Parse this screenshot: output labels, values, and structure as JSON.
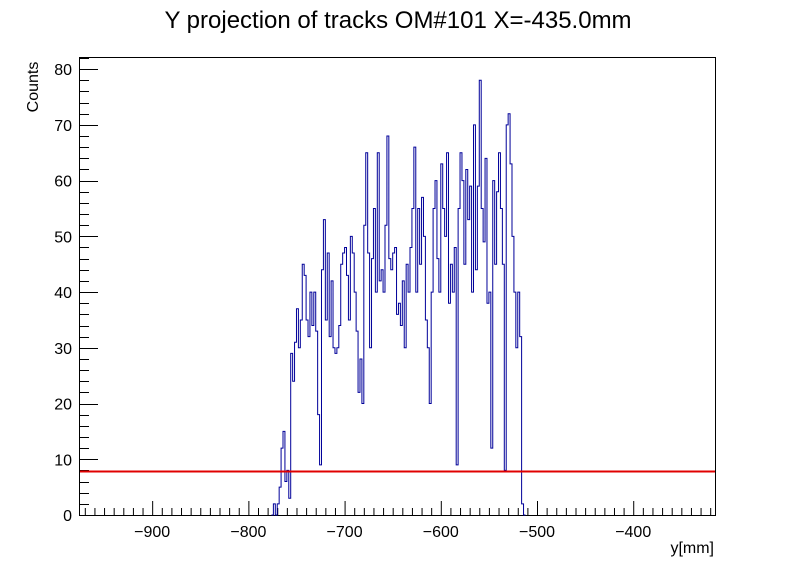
{
  "chart_data": {
    "type": "histogram",
    "title": "Y projection of tracks OM#101 X=-435.0mm",
    "xlabel": "y[mm]",
    "ylabel": "Counts",
    "xlim": [
      -975,
      -315
    ],
    "ylim": [
      0,
      82
    ],
    "x_ticks": [
      -900,
      -800,
      -700,
      -600,
      -500,
      -400
    ],
    "x_tick_labels": [
      "−900",
      "−800",
      "−700",
      "−600",
      "−500",
      "−400"
    ],
    "y_ticks": [
      0,
      10,
      20,
      30,
      40,
      50,
      60,
      70,
      80
    ],
    "y_tick_labels": [
      "0",
      "10",
      "20",
      "30",
      "40",
      "50",
      "60",
      "70",
      "80"
    ],
    "bin_width": 1.5,
    "series": [
      {
        "color": "#000099",
        "points": [
          [
            -775,
            0
          ],
          [
            -773,
            2
          ],
          [
            -771,
            0
          ],
          [
            -769,
            2
          ],
          [
            -767,
            5
          ],
          [
            -765,
            12
          ],
          [
            -763,
            15
          ],
          [
            -761,
            6
          ],
          [
            -759,
            8
          ],
          [
            -757,
            3
          ],
          [
            -755,
            29
          ],
          [
            -753,
            24
          ],
          [
            -751,
            31
          ],
          [
            -749,
            37
          ],
          [
            -747,
            30
          ],
          [
            -745,
            35
          ],
          [
            -743,
            45
          ],
          [
            -741,
            43
          ],
          [
            -739,
            35
          ],
          [
            -737,
            32
          ],
          [
            -735,
            40
          ],
          [
            -733,
            34
          ],
          [
            -731,
            40
          ],
          [
            -729,
            33
          ],
          [
            -727,
            18
          ],
          [
            -725,
            9
          ],
          [
            -723,
            44
          ],
          [
            -721,
            53
          ],
          [
            -719,
            35
          ],
          [
            -717,
            47
          ],
          [
            -715,
            32
          ],
          [
            -713,
            42
          ],
          [
            -711,
            30
          ],
          [
            -709,
            29
          ],
          [
            -707,
            30
          ],
          [
            -705,
            34
          ],
          [
            -703,
            45
          ],
          [
            -701,
            47
          ],
          [
            -699,
            48
          ],
          [
            -697,
            43
          ],
          [
            -695,
            35
          ],
          [
            -693,
            50
          ],
          [
            -691,
            47
          ],
          [
            -689,
            40
          ],
          [
            -687,
            33
          ],
          [
            -685,
            22
          ],
          [
            -683,
            28
          ],
          [
            -681,
            20
          ],
          [
            -679,
            52
          ],
          [
            -677,
            65
          ],
          [
            -675,
            47
          ],
          [
            -673,
            30
          ],
          [
            -671,
            46
          ],
          [
            -669,
            55
          ],
          [
            -667,
            40
          ],
          [
            -665,
            65
          ],
          [
            -663,
            42
          ],
          [
            -661,
            44
          ],
          [
            -659,
            40
          ],
          [
            -657,
            52
          ],
          [
            -655,
            68
          ],
          [
            -653,
            46
          ],
          [
            -651,
            44
          ],
          [
            -649,
            47
          ],
          [
            -647,
            48
          ],
          [
            -645,
            36
          ],
          [
            -643,
            38
          ],
          [
            -641,
            34
          ],
          [
            -639,
            42
          ],
          [
            -637,
            30
          ],
          [
            -635,
            45
          ],
          [
            -633,
            40
          ],
          [
            -631,
            48
          ],
          [
            -629,
            55
          ],
          [
            -627,
            66
          ],
          [
            -625,
            40
          ],
          [
            -623,
            55
          ],
          [
            -621,
            45
          ],
          [
            -619,
            57
          ],
          [
            -617,
            50
          ],
          [
            -615,
            35
          ],
          [
            -613,
            30
          ],
          [
            -611,
            20
          ],
          [
            -609,
            40
          ],
          [
            -607,
            55
          ],
          [
            -605,
            60
          ],
          [
            -603,
            46
          ],
          [
            -601,
            40
          ],
          [
            -599,
            63
          ],
          [
            -597,
            55
          ],
          [
            -595,
            50
          ],
          [
            -593,
            65
          ],
          [
            -591,
            38
          ],
          [
            -589,
            45
          ],
          [
            -587,
            40
          ],
          [
            -585,
            48
          ],
          [
            -583,
            9
          ],
          [
            -581,
            55
          ],
          [
            -579,
            65
          ],
          [
            -577,
            60
          ],
          [
            -575,
            45
          ],
          [
            -573,
            62
          ],
          [
            -571,
            53
          ],
          [
            -569,
            59
          ],
          [
            -567,
            40
          ],
          [
            -565,
            70
          ],
          [
            -563,
            44
          ],
          [
            -561,
            59
          ],
          [
            -559,
            78
          ],
          [
            -557,
            55
          ],
          [
            -555,
            49
          ],
          [
            -553,
            64
          ],
          [
            -551,
            38
          ],
          [
            -549,
            40
          ],
          [
            -547,
            12
          ],
          [
            -545,
            60
          ],
          [
            -543,
            45
          ],
          [
            -541,
            58
          ],
          [
            -539,
            65
          ],
          [
            -537,
            55
          ],
          [
            -535,
            45
          ],
          [
            -533,
            8
          ],
          [
            -531,
            70
          ],
          [
            -529,
            72
          ],
          [
            -527,
            63
          ],
          [
            -525,
            50
          ],
          [
            -523,
            40
          ],
          [
            -521,
            30
          ],
          [
            -519,
            40
          ],
          [
            -517,
            32
          ],
          [
            -515,
            2
          ],
          [
            -513,
            0
          ]
        ]
      }
    ],
    "threshold": {
      "y": 7.8,
      "color": "#e00000"
    }
  }
}
